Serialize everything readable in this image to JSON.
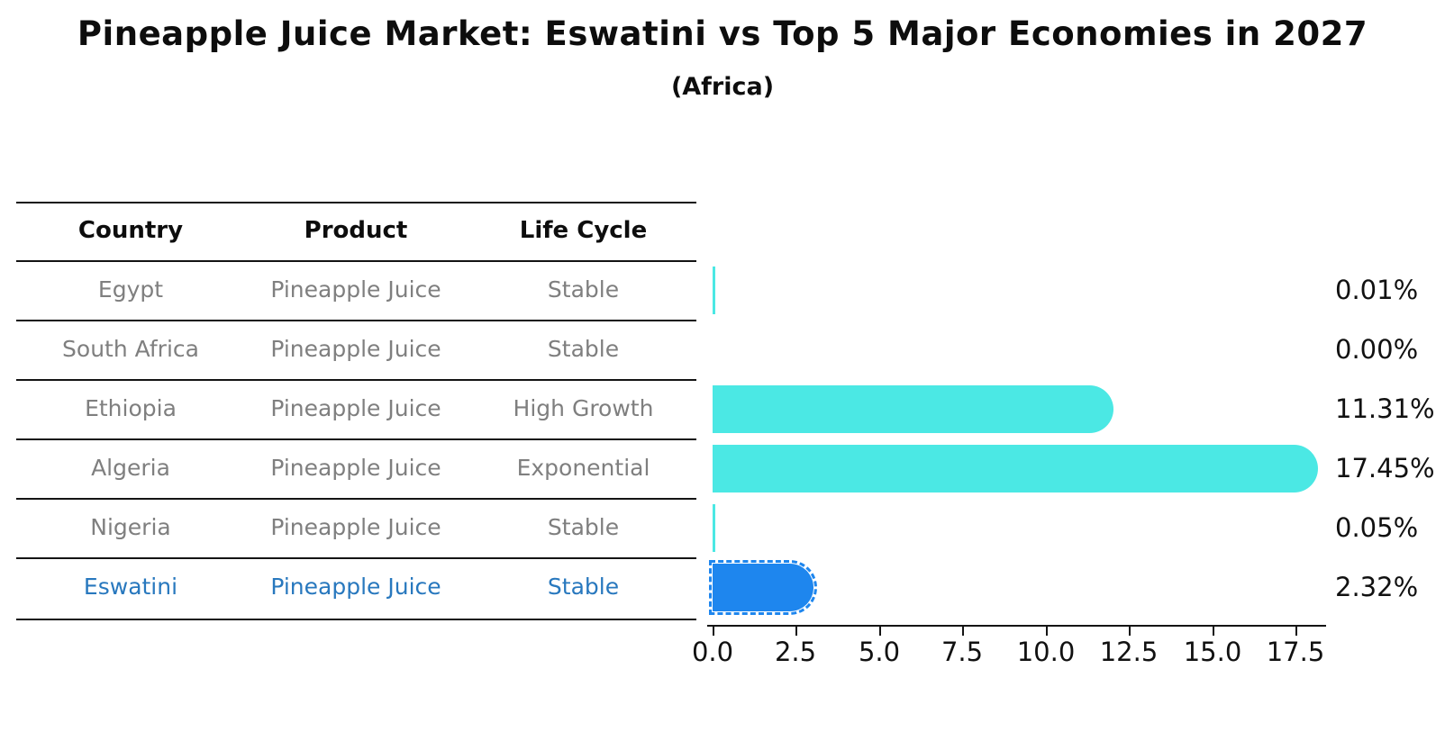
{
  "title": "Pineapple Juice Market: Eswatini vs Top 5 Major Economies in 2027",
  "subtitle": "(Africa)",
  "table": {
    "headers": {
      "country": "Country",
      "product": "Product",
      "life_cycle": "Life Cycle"
    },
    "rows": [
      {
        "country": "Egypt",
        "product": "Pineapple Juice",
        "life_cycle": "Stable"
      },
      {
        "country": "South Africa",
        "product": "Pineapple Juice",
        "life_cycle": "Stable"
      },
      {
        "country": "Ethiopia",
        "product": "Pineapple Juice",
        "life_cycle": "High Growth"
      },
      {
        "country": "Algeria",
        "product": "Pineapple Juice",
        "life_cycle": "Exponential"
      },
      {
        "country": "Nigeria",
        "product": "Pineapple Juice",
        "life_cycle": "Stable"
      },
      {
        "country": "Eswatini",
        "product": "Pineapple Juice",
        "life_cycle": "Stable"
      }
    ],
    "highlight_row": 5
  },
  "chart_data": {
    "type": "bar",
    "orientation": "horizontal",
    "categories": [
      "Egypt",
      "South Africa",
      "Ethiopia",
      "Algeria",
      "Nigeria",
      "Eswatini"
    ],
    "values": [
      0.01,
      0.0,
      11.31,
      17.45,
      0.05,
      2.32
    ],
    "value_labels": [
      "0.01%",
      "0.00%",
      "11.31%",
      "17.45%",
      "0.05%",
      "2.32%"
    ],
    "x_tick_labels": [
      "0.0",
      "2.5",
      "5.0",
      "7.5",
      "10.0",
      "12.5",
      "15.0",
      "17.5"
    ],
    "x_tick_values": [
      0,
      2.5,
      5,
      7.5,
      10,
      12.5,
      15,
      17.5
    ],
    "xlim": [
      0,
      18.4
    ],
    "xlabel": "",
    "ylabel": "",
    "grid": false,
    "bar_color": "#4be8e4",
    "highlight_color": "#1e86ee",
    "highlight_index": 5,
    "highlight_category": "Eswatini"
  },
  "colors": {
    "bar_cyan": "#4be8e4",
    "bar_blue": "#1e86ee",
    "highlight_text": "#2878be",
    "cell_text": "#7f7f7f",
    "header_text": "#0d0d0d",
    "line": "#141414"
  }
}
